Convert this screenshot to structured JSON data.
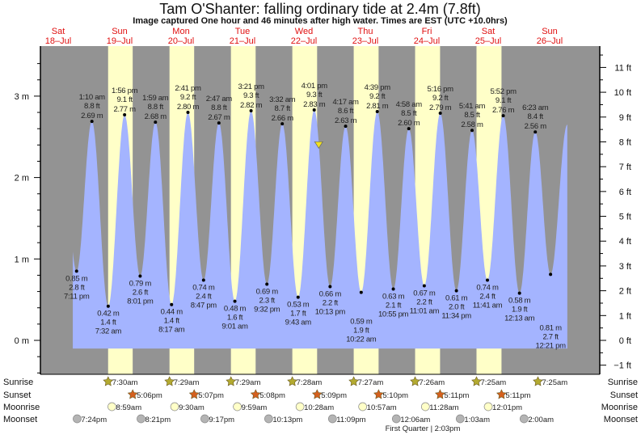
{
  "chart_data": {
    "type": "area",
    "title": "Tam O'Shanter: falling  ordinary tide at 2.4m (7.8ft)",
    "subtitle": "Image captured One hour and 46 minutes after high water. Times are EST (UTC +10.0hrs)",
    "days": [
      {
        "dow": "Sat",
        "date": "18–Jul"
      },
      {
        "dow": "Sun",
        "date": "19–Jul"
      },
      {
        "dow": "Mon",
        "date": "20–Jul"
      },
      {
        "dow": "Tue",
        "date": "21–Jul"
      },
      {
        "dow": "Wed",
        "date": "22–Jul"
      },
      {
        "dow": "Thu",
        "date": "23–Jul"
      },
      {
        "dow": "Fri",
        "date": "24–Jul"
      },
      {
        "dow": "Sat",
        "date": "25–Jul"
      },
      {
        "dow": "Sun",
        "date": "26–Jul"
      }
    ],
    "y_left": {
      "unit": "m",
      "ylim": [
        -0.45,
        3.6
      ],
      "ticks": [
        "0 m",
        "1 m",
        "2 m",
        "3 m"
      ]
    },
    "y_right": {
      "unit": "ft",
      "ticks": [
        "−1 ft",
        "0 ft",
        "1 ft",
        "2 ft",
        "3 ft",
        "4 ft",
        "5 ft",
        "6 ft",
        "7 ft",
        "8 ft",
        "9 ft",
        "10 ft",
        "11 ft"
      ]
    },
    "current": {
      "day": 4,
      "time": "5:47 pm",
      "m": 2.4,
      "ft": 7.8
    },
    "extremes": [
      {
        "day": 0,
        "time": "7:11 pm",
        "m": "0.85 m",
        "ft": "2.8 ft",
        "type": "low",
        "v": 0.85
      },
      {
        "day": 1,
        "time": "1:10 am",
        "m": "2.69 m",
        "ft": "8.8 ft",
        "type": "high",
        "v": 2.69
      },
      {
        "day": 1,
        "time": "7:32 am",
        "m": "0.42 m",
        "ft": "1.4 ft",
        "type": "low",
        "v": 0.42
      },
      {
        "day": 1,
        "time": "1:56 pm",
        "m": "2.77 m",
        "ft": "9.1 ft",
        "type": "high",
        "v": 2.77
      },
      {
        "day": 1,
        "time": "8:01 pm",
        "m": "0.79 m",
        "ft": "2.6 ft",
        "type": "low",
        "v": 0.79
      },
      {
        "day": 2,
        "time": "1:59 am",
        "m": "2.68 m",
        "ft": "8.8 ft",
        "type": "high",
        "v": 2.68
      },
      {
        "day": 2,
        "time": "8:17 am",
        "m": "0.44 m",
        "ft": "1.4 ft",
        "type": "low",
        "v": 0.44
      },
      {
        "day": 2,
        "time": "2:41 pm",
        "m": "2.80 m",
        "ft": "9.2 ft",
        "type": "high",
        "v": 2.8
      },
      {
        "day": 2,
        "time": "8:47 pm",
        "m": "0.74 m",
        "ft": "2.4 ft",
        "type": "low",
        "v": 0.74
      },
      {
        "day": 3,
        "time": "2:47 am",
        "m": "2.67 m",
        "ft": "8.8 ft",
        "type": "high",
        "v": 2.67
      },
      {
        "day": 3,
        "time": "9:01 am",
        "m": "0.48 m",
        "ft": "1.6 ft",
        "type": "low",
        "v": 0.48
      },
      {
        "day": 3,
        "time": "3:21 pm",
        "m": "2.82 m",
        "ft": "9.3 ft",
        "type": "high",
        "v": 2.82
      },
      {
        "day": 3,
        "time": "9:32 pm",
        "m": "0.69 m",
        "ft": "2.3 ft",
        "type": "low",
        "v": 0.69
      },
      {
        "day": 4,
        "time": "3:32 am",
        "m": "2.66 m",
        "ft": "8.7 ft",
        "type": "high",
        "v": 2.66
      },
      {
        "day": 4,
        "time": "9:43 am",
        "m": "0.53 m",
        "ft": "1.7 ft",
        "type": "low",
        "v": 0.53
      },
      {
        "day": 4,
        "time": "4:01 pm",
        "m": "2.83 m",
        "ft": "9.3 ft",
        "type": "high",
        "v": 2.83
      },
      {
        "day": 4,
        "time": "10:13 pm",
        "m": "0.66 m",
        "ft": "2.2 ft",
        "type": "low",
        "v": 0.66
      },
      {
        "day": 5,
        "time": "4:17 am",
        "m": "2.63 m",
        "ft": "8.6 ft",
        "type": "high",
        "v": 2.63
      },
      {
        "day": 5,
        "time": "10:22 am",
        "m": "0.59 m",
        "ft": "1.9 ft",
        "type": "low",
        "v": 0.59
      },
      {
        "day": 5,
        "time": "4:39 pm",
        "m": "2.81 m",
        "ft": "9.2 ft",
        "type": "high",
        "v": 2.81
      },
      {
        "day": 5,
        "time": "10:55 pm",
        "m": "0.63 m",
        "ft": "2.1 ft",
        "type": "low",
        "v": 0.63
      },
      {
        "day": 6,
        "time": "4:58 am",
        "m": "2.60 m",
        "ft": "8.5 ft",
        "type": "high",
        "v": 2.6
      },
      {
        "day": 6,
        "time": "11:01 am",
        "m": "0.67 m",
        "ft": "2.2 ft",
        "type": "low",
        "v": 0.67
      },
      {
        "day": 6,
        "time": "5:16 pm",
        "m": "2.79 m",
        "ft": "9.2 ft",
        "type": "high",
        "v": 2.79
      },
      {
        "day": 6,
        "time": "11:34 pm",
        "m": "0.61 m",
        "ft": "2.0 ft",
        "type": "low",
        "v": 0.61
      },
      {
        "day": 7,
        "time": "5:41 am",
        "m": "2.58 m",
        "ft": "8.5 ft",
        "type": "high",
        "v": 2.58
      },
      {
        "day": 7,
        "time": "11:41 am",
        "m": "0.74 m",
        "ft": "2.4 ft",
        "type": "low",
        "v": 0.74
      },
      {
        "day": 7,
        "time": "5:52 pm",
        "m": "2.76 m",
        "ft": "9.1 ft",
        "type": "high",
        "v": 2.76
      },
      {
        "day": 8,
        "time": "12:13 am",
        "m": "0.58 m",
        "ft": "1.9 ft",
        "type": "low",
        "v": 0.58
      },
      {
        "day": 8,
        "time": "6:23 am",
        "m": "2.56 m",
        "ft": "8.4 ft",
        "type": "high",
        "v": 2.56
      },
      {
        "day": 8,
        "time": "12:21 pm",
        "m": "0.81 m",
        "ft": "2.7 ft",
        "type": "low",
        "v": 0.81
      }
    ],
    "rows": [
      {
        "label": "Sunrise",
        "kind": "sunrise",
        "events": [
          {
            "day": 1,
            "time": "7:30am"
          },
          {
            "day": 2,
            "time": "7:29am"
          },
          {
            "day": 3,
            "time": "7:29am"
          },
          {
            "day": 4,
            "time": "7:28am"
          },
          {
            "day": 5,
            "time": "7:27am"
          },
          {
            "day": 6,
            "time": "7:26am"
          },
          {
            "day": 7,
            "time": "7:25am"
          },
          {
            "day": 8,
            "time": "7:25am"
          }
        ]
      },
      {
        "label": "Sunset",
        "kind": "sunset",
        "events": [
          {
            "day": 1,
            "time": "5:06pm"
          },
          {
            "day": 2,
            "time": "5:07pm"
          },
          {
            "day": 3,
            "time": "5:08pm"
          },
          {
            "day": 4,
            "time": "5:09pm"
          },
          {
            "day": 5,
            "time": "5:10pm"
          },
          {
            "day": 6,
            "time": "5:11pm"
          },
          {
            "day": 7,
            "time": "5:11pm"
          }
        ]
      },
      {
        "label": "Moonrise",
        "kind": "moonrise",
        "events": [
          {
            "day": 1,
            "time": "8:59am"
          },
          {
            "day": 2,
            "time": "9:30am"
          },
          {
            "day": 3,
            "time": "9:59am"
          },
          {
            "day": 4,
            "time": "10:28am"
          },
          {
            "day": 5,
            "time": "10:57am"
          },
          {
            "day": 6,
            "time": "11:28am"
          },
          {
            "day": 7,
            "time": "12:01pm"
          }
        ]
      },
      {
        "label": "Moonset",
        "kind": "moonset",
        "events": [
          {
            "day": 0,
            "time": "7:24pm"
          },
          {
            "day": 1,
            "time": "8:21pm"
          },
          {
            "day": 2,
            "time": "9:17pm"
          },
          {
            "day": 3,
            "time": "10:13pm"
          },
          {
            "day": 4,
            "time": "11:09pm"
          },
          {
            "day": 6,
            "time": "12:06am"
          },
          {
            "day": 7,
            "time": "1:03am"
          },
          {
            "day": 8,
            "time": "2:00am"
          }
        ]
      }
    ],
    "moon_phase": "First Quarter | 2:03pm"
  },
  "colors": {
    "night": "#939393",
    "day": "#ffffc8",
    "water": "#a4b4ff",
    "date_label": "#e01010",
    "sunrise": "#b3aa30",
    "sunset": "#d4601e",
    "moonrise": "#ffffc8",
    "moonset": "#b4b4b4",
    "marker": "#f0e020"
  }
}
